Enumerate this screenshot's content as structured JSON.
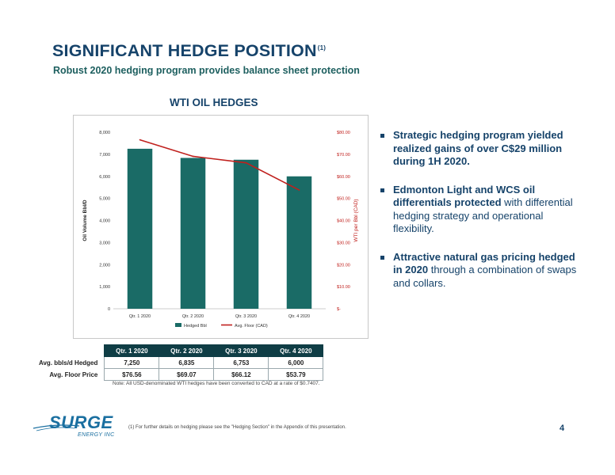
{
  "header": {
    "title": "SIGNIFICANT HEDGE POSITION",
    "title_note": "(1)",
    "subtitle": "Robust 2020 hedging program provides balance sheet protection"
  },
  "chart_data": {
    "type": "bar",
    "title": "WTI OIL HEDGES",
    "categories": [
      "Qtr. 1 2020",
      "Qtr. 2 2020",
      "Qtr. 3 2020",
      "Qtr. 4 2020"
    ],
    "series": [
      {
        "name": "Hedged Bbl",
        "kind": "bar",
        "axis": "left",
        "values": [
          7250,
          6835,
          6753,
          6000
        ],
        "color": "#1a6b66"
      },
      {
        "name": "Avg.  Floor (CAD)",
        "kind": "line",
        "axis": "right",
        "values": [
          76.56,
          69.07,
          66.12,
          53.79
        ],
        "color": "#c0201d"
      }
    ],
    "ylabel": "Oil Volume Bbl/D",
    "y2label": "WTI per Bbl (CAD)",
    "ylim": [
      0,
      8000
    ],
    "y2lim": [
      0,
      80
    ],
    "yticks": [
      "0",
      "1,000",
      "2,000",
      "3,000",
      "4,000",
      "5,000",
      "6,000",
      "7,000",
      "8,000"
    ],
    "y2ticks": [
      "$-",
      "$10.00",
      "$20.00",
      "$30.00",
      "$40.00",
      "$50.00",
      "$60.00",
      "$70.00",
      "$80.00"
    ],
    "grid": false,
    "legend": "bottom"
  },
  "bullets": [
    {
      "strong": "Strategic hedging program yielded realized gains of over C$29 million during 1H 2020.",
      "rest": ""
    },
    {
      "strong": "Edmonton Light and WCS oil differentials protected",
      "rest": " with differential hedging strategy and operational flexibility."
    },
    {
      "strong": "Attractive natural gas pricing hedged in 2020",
      "rest": " through a combination of swaps and collars."
    }
  ],
  "table": {
    "headers": [
      "Qtr. 1 2020",
      "Qtr. 2 2020",
      "Qtr. 3 2020",
      "Qtr. 4 2020"
    ],
    "rows": [
      {
        "label": "Avg. bbls/d Hedged",
        "values": [
          "7,250",
          "6,835",
          "6,753",
          "6,000"
        ]
      },
      {
        "label": "Avg. Floor Price",
        "values": [
          "$76.56",
          "$69.07",
          "$66.12",
          "$53.79"
        ]
      }
    ]
  },
  "note": "Note: All USD-denominated WTI hedges have been converted to CAD at a rate of $0.7407.",
  "footnote": "(1) For further details on hedging please see the \"Hedging Section\" in the Appendix of this presentation.",
  "logo": {
    "name": "SURGE",
    "sub": "ENERGY INC"
  },
  "page_number": "4"
}
